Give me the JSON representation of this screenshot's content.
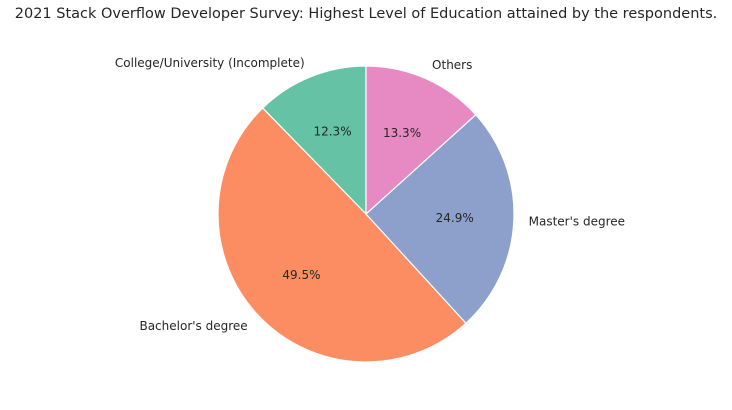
{
  "chart_data": {
    "type": "pie",
    "title": "2021 Stack Overflow Developer Survey: Highest Level of Education attained by the respondents.",
    "slices": [
      {
        "label": "College/University (Incomplete)",
        "value": 12.3,
        "pct_label": "12.3%",
        "color": "#66c2a5"
      },
      {
        "label": "Bachelor's degree",
        "value": 49.5,
        "pct_label": "49.5%",
        "color": "#fc8d62"
      },
      {
        "label": "Master's degree",
        "value": 24.9,
        "pct_label": "24.9%",
        "color": "#8da0cb"
      },
      {
        "label": "Others",
        "value": 13.3,
        "pct_label": "13.3%",
        "color": "#e78ac3"
      }
    ],
    "start_angle_deg": 90,
    "direction": "counterclockwise",
    "legend": "none"
  }
}
